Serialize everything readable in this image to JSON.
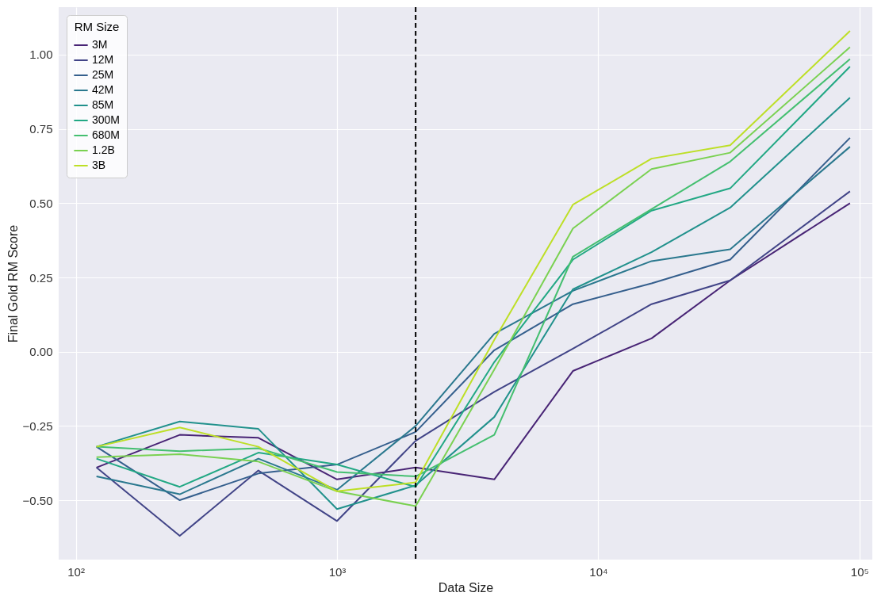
{
  "chart_data": {
    "type": "line",
    "xlabel": "Data Size",
    "ylabel": "Final Gold RM Score",
    "legend_title": "RM Size",
    "legend": "top left",
    "grid": true,
    "log": "x",
    "line_style": "solid",
    "marker": "none",
    "x": [
      120,
      250,
      500,
      1000,
      2000,
      4000,
      8000,
      16000,
      32000,
      92000
    ],
    "xlim": [
      86,
      112000
    ],
    "xticks": [
      {
        "value": 100,
        "label": "10²"
      },
      {
        "value": 1000,
        "label": "10³"
      },
      {
        "value": 10000,
        "label": "10⁴"
      },
      {
        "value": 100000,
        "label": "10⁵"
      }
    ],
    "ylim": [
      -0.7,
      1.16
    ],
    "yticks": [
      {
        "value": -0.5,
        "label": "−0.50"
      },
      {
        "value": -0.25,
        "label": "−0.25"
      },
      {
        "value": 0,
        "label": "0.00"
      },
      {
        "value": 0.25,
        "label": "0.25"
      },
      {
        "value": 0.5,
        "label": "0.50"
      },
      {
        "value": 0.75,
        "label": "0.75"
      },
      {
        "value": 1,
        "label": "1.00"
      }
    ],
    "ref_lines": [
      {
        "axis": "x",
        "value": 2000,
        "color": "#000000",
        "line_style": "dashed"
      }
    ],
    "series": [
      {
        "name": "3M",
        "color": "#482475",
        "values": [
          -0.39,
          -0.28,
          -0.29,
          -0.43,
          -0.39,
          -0.43,
          -0.065,
          0.045,
          0.24,
          0.5
        ]
      },
      {
        "name": "12M",
        "color": "#414487",
        "values": [
          -0.39,
          -0.62,
          -0.4,
          -0.57,
          -0.3,
          -0.135,
          0.01,
          0.16,
          0.24,
          0.54
        ]
      },
      {
        "name": "25M",
        "color": "#355f8d",
        "values": [
          -0.32,
          -0.5,
          -0.41,
          -0.38,
          -0.27,
          0.005,
          0.16,
          0.23,
          0.31,
          0.72
        ]
      },
      {
        "name": "42M",
        "color": "#2a788e",
        "values": [
          -0.42,
          -0.48,
          -0.36,
          -0.465,
          -0.25,
          0.06,
          0.205,
          0.305,
          0.345,
          0.69
        ]
      },
      {
        "name": "85M",
        "color": "#21918c",
        "values": [
          -0.32,
          -0.235,
          -0.26,
          -0.53,
          -0.45,
          -0.22,
          0.21,
          0.335,
          0.485,
          0.855
        ]
      },
      {
        "name": "300M",
        "color": "#22a884",
        "values": [
          -0.36,
          -0.455,
          -0.34,
          -0.38,
          -0.455,
          -0.035,
          0.31,
          0.475,
          0.55,
          0.96
        ]
      },
      {
        "name": "680M",
        "color": "#44bf70",
        "values": [
          -0.32,
          -0.335,
          -0.325,
          -0.405,
          -0.42,
          -0.28,
          0.32,
          0.48,
          0.64,
          0.985
        ]
      },
      {
        "name": "1.2B",
        "color": "#7ad151",
        "values": [
          -0.355,
          -0.345,
          -0.37,
          -0.47,
          -0.52,
          -0.06,
          0.415,
          0.615,
          0.67,
          1.025
        ]
      },
      {
        "name": "3B",
        "color": "#bddf26",
        "values": [
          -0.32,
          -0.255,
          -0.32,
          -0.47,
          -0.44,
          0.04,
          0.495,
          0.65,
          0.695,
          1.08
        ]
      }
    ]
  }
}
